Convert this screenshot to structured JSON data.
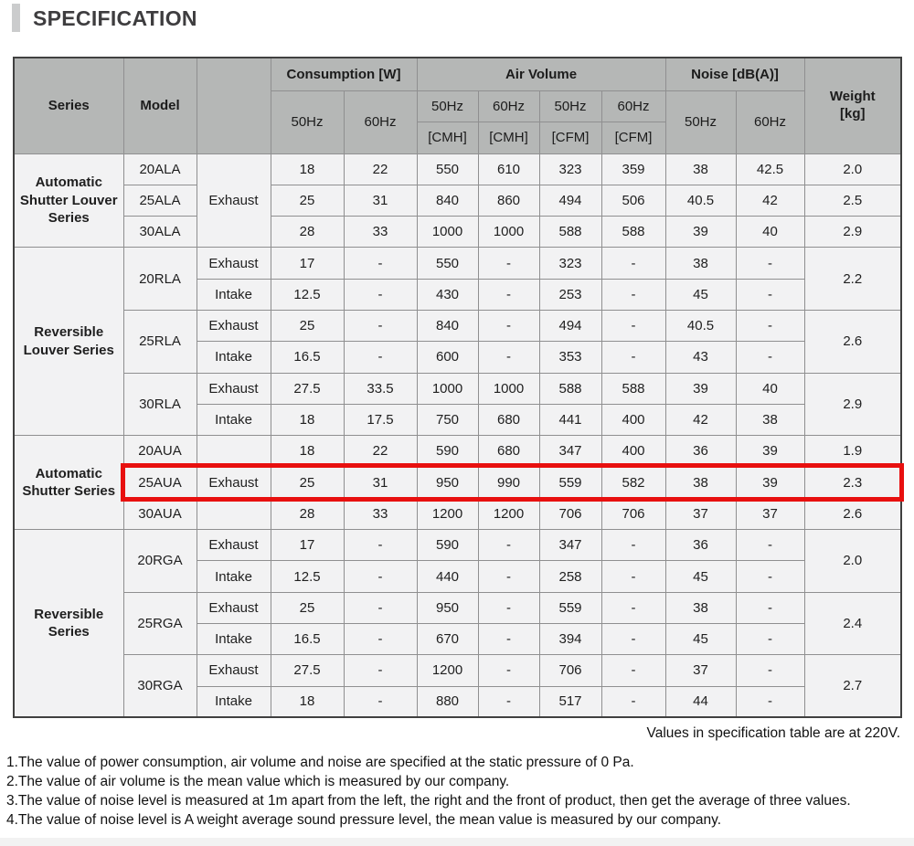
{
  "page": {
    "title": "SPECIFICATION",
    "voltage_note": "Values in specification table are at 220V.",
    "notes": [
      "1.The value of power consumption, air volume and noise are specified at the static pressure of 0 Pa.",
      "2.The value of air volume is the mean value which is measured by our company.",
      "3.The value of noise level is measured at 1m apart from the left, the right and the front of product, then get the average of three values.",
      "4.The value of noise level is A weight average sound pressure level, the mean value is measured by our company."
    ]
  },
  "colors": {
    "highlight_red": "#e8100f",
    "header_bg": "#b5b7b6",
    "cell_bg": "#f2f2f3",
    "accent_bar": "#cbcccd"
  },
  "table": {
    "headers": {
      "series": "Series",
      "model": "Model",
      "mode": "",
      "consumption": "Consumption [W]",
      "air_volume": "Air Volume",
      "noise": "Noise [dB(A)]",
      "weight": "Weight\n[kg]",
      "hz50": "50Hz",
      "hz60": "60Hz",
      "cmh": "[CMH]",
      "cfm": "[CFM]"
    },
    "rows": [
      {
        "series": "Automatic Shutter Louver Series",
        "model": "20ALA",
        "mode": "Exhaust",
        "v": [
          "18",
          "22",
          "550",
          "610",
          "323",
          "359",
          "38",
          "42.5"
        ],
        "weight": "2.0"
      },
      {
        "model": "25ALA",
        "v": [
          "25",
          "31",
          "840",
          "860",
          "494",
          "506",
          "40.5",
          "42"
        ],
        "weight": "2.5"
      },
      {
        "model": "30ALA",
        "v": [
          "28",
          "33",
          "1000",
          "1000",
          "588",
          "588",
          "39",
          "40"
        ],
        "weight": "2.9"
      },
      {
        "series": "Reversible Louver Series",
        "model": "20RLA",
        "mode": "Exhaust",
        "v": [
          "17",
          "-",
          "550",
          "-",
          "323",
          "-",
          "38",
          "-"
        ],
        "weight": "2.2"
      },
      {
        "mode": "Intake",
        "v": [
          "12.5",
          "-",
          "430",
          "-",
          "253",
          "-",
          "45",
          "-"
        ]
      },
      {
        "model": "25RLA",
        "mode": "Exhaust",
        "v": [
          "25",
          "-",
          "840",
          "-",
          "494",
          "-",
          "40.5",
          "-"
        ],
        "weight": "2.6"
      },
      {
        "mode": "Intake",
        "v": [
          "16.5",
          "-",
          "600",
          "-",
          "353",
          "-",
          "43",
          "-"
        ]
      },
      {
        "model": "30RLA",
        "mode": "Exhaust",
        "v": [
          "27.5",
          "33.5",
          "1000",
          "1000",
          "588",
          "588",
          "39",
          "40"
        ],
        "weight": "2.9"
      },
      {
        "mode": "Intake",
        "v": [
          "18",
          "17.5",
          "750",
          "680",
          "441",
          "400",
          "42",
          "38"
        ]
      },
      {
        "series": "Automatic Shutter Series",
        "model": "20AUA",
        "mode": "Exhaust",
        "v": [
          "18",
          "22",
          "590",
          "680",
          "347",
          "400",
          "36",
          "39"
        ],
        "weight": "1.9"
      },
      {
        "model": "25AUA",
        "v": [
          "25",
          "31",
          "950",
          "990",
          "559",
          "582",
          "38",
          "39"
        ],
        "weight": "2.3",
        "highlighted": true
      },
      {
        "model": "30AUA",
        "v": [
          "28",
          "33",
          "1200",
          "1200",
          "706",
          "706",
          "37",
          "37"
        ],
        "weight": "2.6"
      },
      {
        "series": "Reversible Series",
        "model": "20RGA",
        "mode": "Exhaust",
        "v": [
          "17",
          "-",
          "590",
          "-",
          "347",
          "-",
          "36",
          "-"
        ],
        "weight": "2.0"
      },
      {
        "mode": "Intake",
        "v": [
          "12.5",
          "-",
          "440",
          "-",
          "258",
          "-",
          "45",
          "-"
        ]
      },
      {
        "model": "25RGA",
        "mode": "Exhaust",
        "v": [
          "25",
          "-",
          "950",
          "-",
          "559",
          "-",
          "38",
          "-"
        ],
        "weight": "2.4"
      },
      {
        "mode": "Intake",
        "v": [
          "16.5",
          "-",
          "670",
          "-",
          "394",
          "-",
          "45",
          "-"
        ]
      },
      {
        "model": "30RGA",
        "mode": "Exhaust",
        "v": [
          "27.5",
          "-",
          "1200",
          "-",
          "706",
          "-",
          "37",
          "-"
        ],
        "weight": "2.7"
      },
      {
        "mode": "Intake",
        "v": [
          "18",
          "-",
          "880",
          "-",
          "517",
          "-",
          "44",
          "-"
        ]
      }
    ]
  }
}
